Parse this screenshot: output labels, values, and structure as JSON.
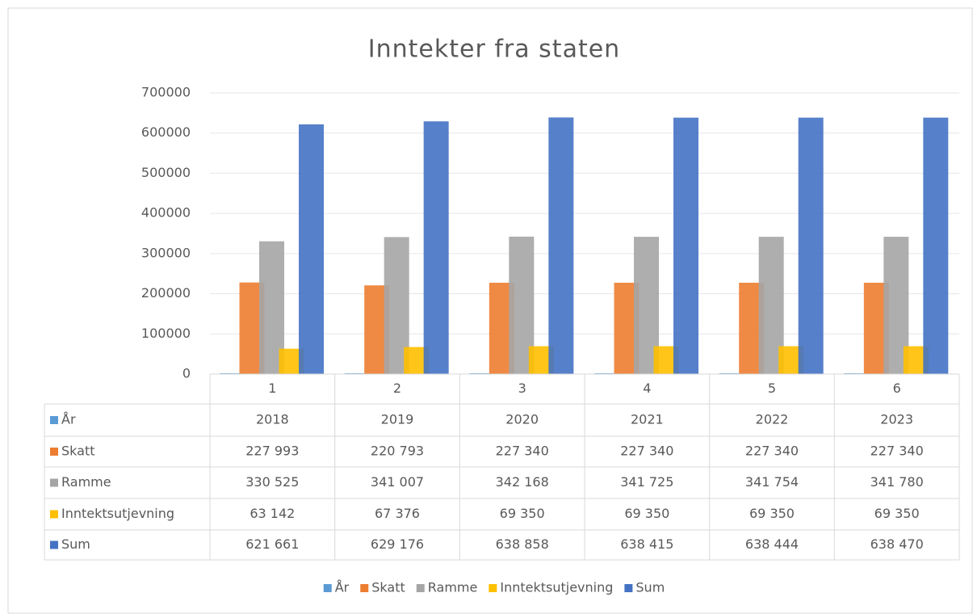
{
  "chart_data": {
    "type": "bar",
    "title": "Inntekter fra staten",
    "categories": [
      "1",
      "2",
      "3",
      "4",
      "5",
      "6"
    ],
    "series": [
      {
        "name": "År",
        "color": "#5b9bd5",
        "values": [
          2018,
          2019,
          2020,
          2021,
          2022,
          2023
        ]
      },
      {
        "name": "Skatt",
        "color": "#ed7d31",
        "values": [
          227993,
          220793,
          227340,
          227340,
          227340,
          227340
        ],
        "value_labels": [
          "227 993",
          "220 793",
          "227 340",
          "227 340",
          "227 340",
          "227 340"
        ]
      },
      {
        "name": "Ramme",
        "color": "#a5a5a5",
        "values": [
          330525,
          341007,
          342168,
          341725,
          341754,
          341780
        ],
        "value_labels": [
          "330 525",
          "341 007",
          "342 168",
          "341 725",
          "341 754",
          "341 780"
        ]
      },
      {
        "name": "Inntektsutjevning",
        "color": "#ffc000",
        "values": [
          63142,
          67376,
          69350,
          69350,
          69350,
          69350
        ],
        "value_labels": [
          "63 142",
          "67 376",
          "69 350",
          "69 350",
          "69 350",
          "69 350"
        ]
      },
      {
        "name": "Sum",
        "color": "#4472c4",
        "values": [
          621661,
          629176,
          638858,
          638415,
          638444,
          638470
        ],
        "value_labels": [
          "621 661",
          "629 176",
          "638 858",
          "638 415",
          "638 444",
          "638 470"
        ]
      }
    ],
    "ylim": [
      0,
      700000
    ],
    "yticks": [
      0,
      100000,
      200000,
      300000,
      400000,
      500000,
      600000,
      700000
    ],
    "grid": true,
    "legend": "bottom",
    "data_table": true
  }
}
